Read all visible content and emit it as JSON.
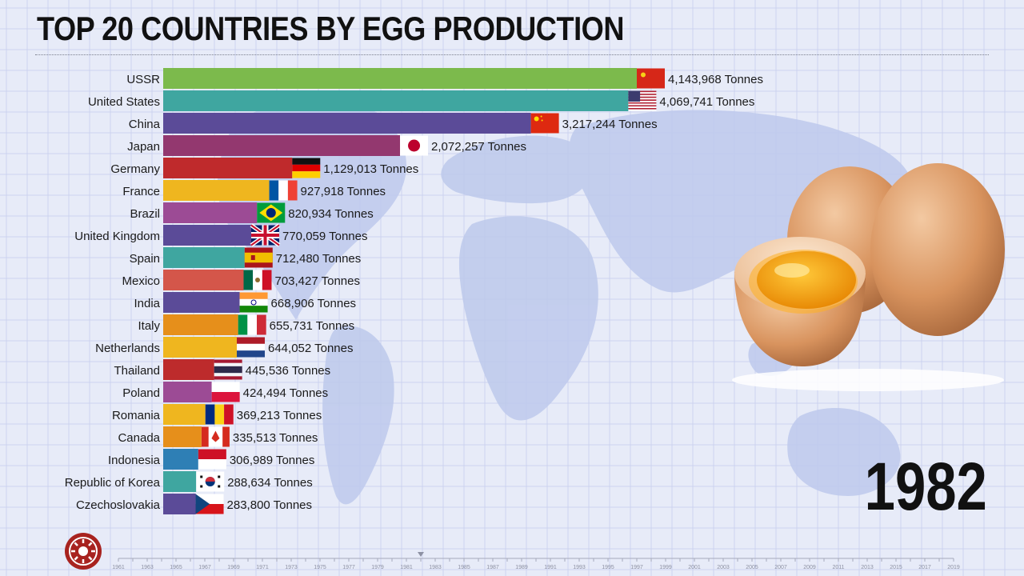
{
  "header": {
    "title": "TOP 20 COUNTRIES BY EGG PRODUCTION"
  },
  "current_year": "1982",
  "colors": {
    "background": "#e7ebf8",
    "grid": "#ccd3ef",
    "map": "#bdc9ec"
  },
  "chart_data": {
    "type": "bar",
    "orientation": "horizontal",
    "title": "TOP 20 COUNTRIES BY EGG PRODUCTION",
    "unit": "Tonnes",
    "xlim": [
      0,
      4143968
    ],
    "categories": [
      "USSR",
      "United States",
      "China",
      "Japan",
      "Germany",
      "France",
      "Brazil",
      "United Kingdom",
      "Spain",
      "Mexico",
      "India",
      "Italy",
      "Netherlands",
      "Thailand",
      "Poland",
      "Romania",
      "Canada",
      "Indonesia",
      "Republic of Korea",
      "Czechoslovakia"
    ],
    "values": [
      4143968,
      4069741,
      3217244,
      2072257,
      1129013,
      927918,
      820934,
      770059,
      712480,
      703427,
      668906,
      655731,
      644052,
      445536,
      424494,
      369213,
      335513,
      306989,
      288634,
      283800
    ],
    "value_labels": [
      "4,143,968 Tonnes",
      "4,069,741 Tonnes",
      "3,217,244 Tonnes",
      "2,072,257 Tonnes",
      "1,129,013 Tonnes",
      "927,918 Tonnes",
      "820,934 Tonnes",
      "770,059 Tonnes",
      "712,480 Tonnes",
      "703,427 Tonnes",
      "668,906 Tonnes",
      "655,731 Tonnes",
      "644,052 Tonnes",
      "445,536 Tonnes",
      "424,494 Tonnes",
      "369,213 Tonnes",
      "335,513 Tonnes",
      "306,989 Tonnes",
      "288,634 Tonnes",
      "283,800 Tonnes"
    ],
    "bar_colors": [
      "#7cba4c",
      "#3fa6a0",
      "#5b4b98",
      "#93386f",
      "#bf2a2c",
      "#efb61f",
      "#9c4b95",
      "#5b4b98",
      "#3fa6a0",
      "#d4564a",
      "#5b4b98",
      "#e68f1b",
      "#efb61f",
      "#bd2b2c",
      "#9c4b95",
      "#efb61f",
      "#e68f1b",
      "#2e7fb5",
      "#3fa6a0",
      "#5b4b98"
    ],
    "flags": [
      "ussr",
      "usa",
      "china",
      "japan",
      "germany",
      "france",
      "brazil",
      "uk",
      "spain",
      "mexico",
      "india",
      "italy",
      "netherlands",
      "thailand",
      "poland",
      "romania",
      "canada",
      "indonesia",
      "korea",
      "czechoslovakia"
    ],
    "timeline_ticks": [
      "1961",
      "1963",
      "1965",
      "1967",
      "1969",
      "1971",
      "1973",
      "1975",
      "1977",
      "1979",
      "1981",
      "1983",
      "1985",
      "1987",
      "1989",
      "1991",
      "1993",
      "1995",
      "1997",
      "1999",
      "2001",
      "2003",
      "2005",
      "2007",
      "2009",
      "2011",
      "2013",
      "2015",
      "2017",
      "2019"
    ],
    "timeline_current": "1982",
    "timeline_range": [
      1961,
      2019
    ]
  }
}
